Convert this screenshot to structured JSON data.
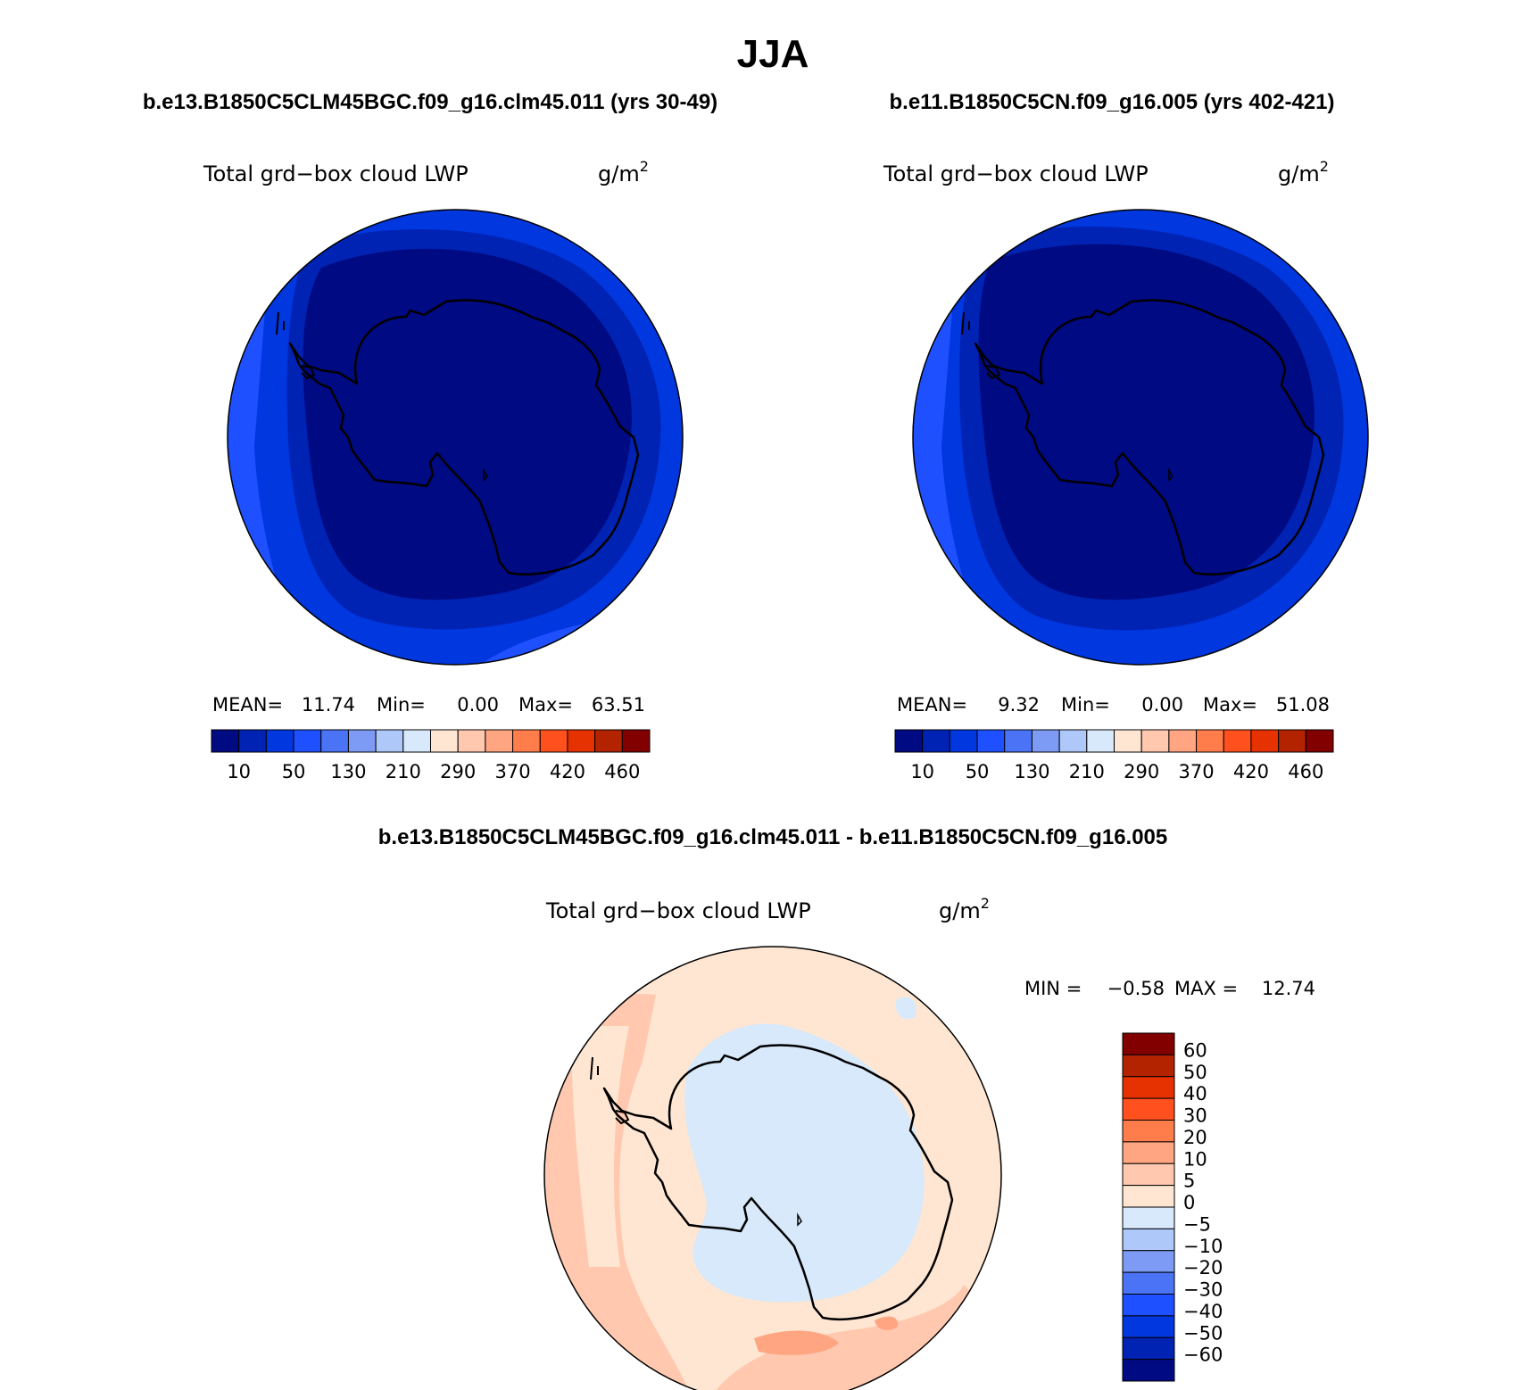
{
  "main_title": "JJA",
  "chart_data": [
    {
      "type": "heatmap",
      "projection": "south-polar-stereographic",
      "case_title": "b.e13.B1850C5CLM45BGC.f09_g16.clm45.011 (yrs 30-49)",
      "variable": "Total grd−box cloud LWP",
      "units_base": "g/m",
      "units_exp": "2",
      "stats": [
        {
          "label": "MEAN=",
          "value": "11.74"
        },
        {
          "label": "Min=",
          "value": "0.00"
        },
        {
          "label": "Max=",
          "value": "63.51"
        }
      ],
      "colorbar": {
        "orientation": "horizontal",
        "levels": [
          10,
          30,
          50,
          90,
          130,
          170,
          210,
          250,
          290,
          330,
          370,
          400,
          420,
          440,
          460
        ],
        "tick_labels": [
          "10",
          "50",
          "130",
          "210",
          "290",
          "370",
          "420",
          "460"
        ],
        "colors": [
          "#000a82",
          "#0023b4",
          "#0037df",
          "#1e50ff",
          "#4b73f5",
          "#7d9bf5",
          "#afc8fa",
          "#d7e9fa",
          "#ffe6d2",
          "#ffc8af",
          "#ffa582",
          "#ff7d4b",
          "#ff501e",
          "#e63200",
          "#b42300",
          "#820000"
        ]
      }
    },
    {
      "type": "heatmap",
      "projection": "south-polar-stereographic",
      "case_title": "b.e11.B1850C5CN.f09_g16.005 (yrs 402-421)",
      "variable": "Total grd−box cloud LWP",
      "units_base": "g/m",
      "units_exp": "2",
      "stats": [
        {
          "label": "MEAN=",
          "value": "9.32"
        },
        {
          "label": "Min=",
          "value": "0.00"
        },
        {
          "label": "Max=",
          "value": "51.08"
        }
      ],
      "colorbar": {
        "orientation": "horizontal",
        "levels": [
          10,
          30,
          50,
          90,
          130,
          170,
          210,
          250,
          290,
          330,
          370,
          400,
          420,
          440,
          460
        ],
        "tick_labels": [
          "10",
          "50",
          "130",
          "210",
          "290",
          "370",
          "420",
          "460"
        ],
        "colors": [
          "#000a82",
          "#0023b4",
          "#0037df",
          "#1e50ff",
          "#4b73f5",
          "#7d9bf5",
          "#afc8fa",
          "#d7e9fa",
          "#ffe6d2",
          "#ffc8af",
          "#ffa582",
          "#ff7d4b",
          "#ff501e",
          "#e63200",
          "#b42300",
          "#820000"
        ]
      }
    },
    {
      "type": "heatmap",
      "projection": "south-polar-stereographic",
      "case_title": "b.e13.B1850C5CLM45BGC.f09_g16.clm45.011 - b.e11.B1850C5CN.f09_g16.005",
      "variable": "Total grd−box cloud LWP",
      "units_base": "g/m",
      "units_exp": "2",
      "minmax": {
        "min_label": "MIN =",
        "min_value": "−0.58",
        "max_label": "MAX =",
        "max_value": "12.74"
      },
      "colorbar": {
        "orientation": "vertical",
        "tick_labels": [
          "60",
          "50",
          "40",
          "30",
          "20",
          "10",
          "5",
          "0",
          "−5",
          "−10",
          "−20",
          "−30",
          "−40",
          "−50",
          "−60"
        ],
        "colors": [
          "#820000",
          "#b42300",
          "#e63200",
          "#ff501e",
          "#ff7d4b",
          "#ffa582",
          "#ffc8af",
          "#ffe6d2",
          "#d7e9fa",
          "#afc8fa",
          "#7d9bf5",
          "#4b73f5",
          "#1e50ff",
          "#0037df",
          "#0023b4",
          "#000a82"
        ]
      }
    }
  ]
}
